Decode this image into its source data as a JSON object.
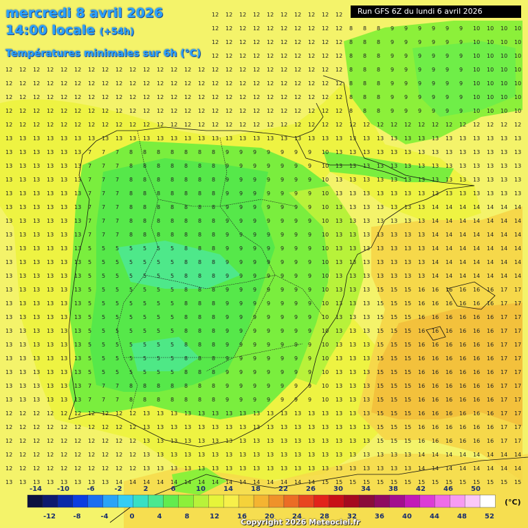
{
  "title": {
    "date": "mercredi 8 avril 2026",
    "time": "14:00 locale",
    "offset": "(+54h)",
    "variable": "Températures minimales sur 6h (°C)"
  },
  "run_label": "Run GFS 6Z du lundi 6 avril 2026",
  "copyright": "Copyright 2026 Meteociel.fr",
  "legend": {
    "unit": "(°C)",
    "top_labels": [
      "-14",
      "-10",
      "-6",
      "-2",
      "2",
      "6",
      "10",
      "14",
      "18",
      "22",
      "26",
      "30",
      "34",
      "38",
      "42",
      "46",
      "50"
    ],
    "bottom_labels": [
      "-12",
      "-8",
      "-4",
      "0",
      "4",
      "8",
      "12",
      "16",
      "20",
      "24",
      "28",
      "32",
      "36",
      "40",
      "44",
      "48",
      "52"
    ],
    "colors": [
      "#0b1140",
      "#0d1a6e",
      "#0a2aa8",
      "#0c3ee0",
      "#1b6ef0",
      "#2aa4f6",
      "#35cdf5",
      "#38e0c4",
      "#4ce88f",
      "#62ec4e",
      "#8cf03a",
      "#b8f23a",
      "#e6f43a",
      "#f7f04a",
      "#f5d23a",
      "#f4b431",
      "#ef922a",
      "#eb6d25",
      "#e84620",
      "#e2231b",
      "#c81017",
      "#a50a1f",
      "#8a0c3a",
      "#8e0b61",
      "#a30f8e",
      "#c21ab7",
      "#dc3cd6",
      "#ef6ce8",
      "#f79bf2",
      "#fbc8f8",
      "#ffffff"
    ],
    "field_colors": {
      "yellow": "#f4f36a",
      "yellow_bright": "#ecf23b",
      "light_green": "#b8f23a",
      "green": "#7aee3e",
      "green_dark": "#56e84a",
      "cyan_green": "#4ce8a0",
      "orange_light": "#f6d84a",
      "orange": "#f3c13c"
    }
  },
  "icons": [
    "map-graticule",
    "coastline"
  ]
}
